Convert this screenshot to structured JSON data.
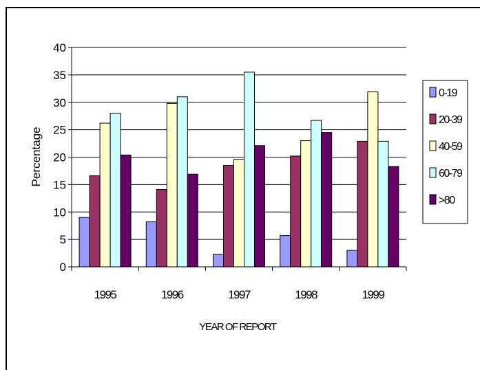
{
  "chart_data": {
    "type": "bar",
    "title": "",
    "xlabel": "YEAR OF REPORT",
    "ylabel": "Percentage",
    "categories": [
      "1995",
      "1996",
      "1997",
      "1998",
      "1999"
    ],
    "ylim": [
      0,
      40
    ],
    "yticks": [
      0,
      5,
      10,
      15,
      20,
      25,
      30,
      35,
      40
    ],
    "grid": true,
    "legend_position": "right",
    "series": [
      {
        "name": "0-19",
        "color": "#9999ff",
        "values": [
          9.0,
          8.2,
          2.3,
          5.7,
          3.0
        ]
      },
      {
        "name": "20-39",
        "color": "#993366",
        "values": [
          16.6,
          14.1,
          18.5,
          20.2,
          22.9
        ]
      },
      {
        "name": "40-59",
        "color": "#ffffcc",
        "values": [
          26.2,
          29.8,
          19.6,
          23.0,
          31.9
        ]
      },
      {
        "name": "60-79",
        "color": "#ccffff",
        "values": [
          28.0,
          31.0,
          35.5,
          26.7,
          22.9
        ]
      },
      {
        "name": ">80",
        "color": "#660066",
        "values": [
          20.4,
          16.9,
          22.1,
          24.5,
          18.3
        ]
      }
    ]
  }
}
